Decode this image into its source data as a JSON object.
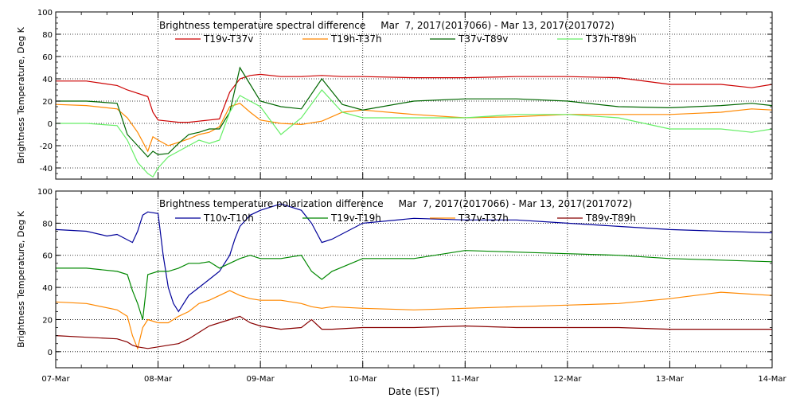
{
  "chart_data": [
    {
      "type": "line",
      "title": "Brightness temperature spectral difference     Mar  7, 2017(2017066) - Mar 13, 2017(2017072)",
      "xlabel": "",
      "ylabel": "Brightness Temperature, Deg K",
      "ylim": [
        -50,
        100
      ],
      "yticks": [
        -40,
        -20,
        0,
        20,
        40,
        60,
        80,
        100
      ],
      "xlim": [
        0,
        7
      ],
      "grid": true,
      "legend_position": "top",
      "series": [
        {
          "name": "T19v-T37v",
          "color": "#cc0000",
          "x": [
            0,
            0.3,
            0.6,
            0.7,
            0.8,
            0.9,
            0.95,
            1.0,
            1.1,
            1.2,
            1.3,
            1.4,
            1.5,
            1.6,
            1.7,
            1.8,
            1.9,
            2.0,
            2.2,
            2.4,
            2.6,
            2.8,
            3.0,
            3.5,
            4.0,
            4.5,
            5.0,
            5.5,
            6.0,
            6.5,
            6.8,
            7.0
          ],
          "y": [
            38,
            38,
            34,
            30,
            27,
            24,
            10,
            3,
            2,
            1,
            1,
            2,
            3,
            4,
            28,
            40,
            43,
            44,
            42,
            42,
            43,
            42,
            42,
            41,
            41,
            42,
            42,
            41,
            35,
            35,
            32,
            35
          ]
        },
        {
          "name": "T19h-T37h",
          "color": "#ff8800",
          "x": [
            0,
            0.3,
            0.6,
            0.7,
            0.8,
            0.9,
            0.95,
            1.0,
            1.1,
            1.2,
            1.3,
            1.4,
            1.5,
            1.6,
            1.7,
            1.8,
            1.9,
            2.0,
            2.2,
            2.4,
            2.6,
            2.8,
            3.0,
            3.5,
            4.0,
            4.5,
            5.0,
            5.5,
            6.0,
            6.5,
            6.8,
            7.0
          ],
          "y": [
            17,
            16,
            13,
            5,
            -8,
            -25,
            -12,
            -15,
            -20,
            -17,
            -14,
            -10,
            -8,
            -3,
            15,
            18,
            10,
            3,
            0,
            -1,
            2,
            10,
            12,
            8,
            5,
            6,
            8,
            8,
            8,
            10,
            13,
            12
          ]
        },
        {
          "name": "T37v-T89v",
          "color": "#006600",
          "x": [
            0,
            0.3,
            0.6,
            0.7,
            0.8,
            0.9,
            0.95,
            1.0,
            1.1,
            1.2,
            1.3,
            1.4,
            1.5,
            1.6,
            1.7,
            1.8,
            1.9,
            2.0,
            2.2,
            2.4,
            2.6,
            2.8,
            3.0,
            3.5,
            4.0,
            4.5,
            5.0,
            5.5,
            6.0,
            6.5,
            6.8,
            7.0
          ],
          "y": [
            20,
            20,
            18,
            -10,
            -20,
            -30,
            -25,
            -28,
            -27,
            -18,
            -10,
            -8,
            -5,
            -5,
            10,
            50,
            35,
            20,
            15,
            13,
            40,
            17,
            12,
            20,
            22,
            22,
            20,
            15,
            14,
            16,
            18,
            16
          ]
        },
        {
          "name": "T37h-T89h",
          "color": "#66ee66",
          "x": [
            0,
            0.3,
            0.6,
            0.7,
            0.8,
            0.9,
            0.95,
            1.0,
            1.1,
            1.2,
            1.3,
            1.4,
            1.5,
            1.6,
            1.7,
            1.8,
            1.9,
            2.0,
            2.2,
            2.4,
            2.6,
            2.8,
            3.0,
            3.5,
            4.0,
            4.5,
            5.0,
            5.5,
            6.0,
            6.5,
            6.8,
            7.0
          ],
          "y": [
            0,
            0,
            -2,
            -15,
            -35,
            -45,
            -48,
            -40,
            -30,
            -25,
            -20,
            -15,
            -18,
            -15,
            10,
            25,
            20,
            15,
            -10,
            5,
            30,
            10,
            5,
            5,
            5,
            8,
            8,
            5,
            -5,
            -5,
            -8,
            -5
          ]
        }
      ]
    },
    {
      "type": "line",
      "title": "Brightness temperature polarization difference     Mar  7, 2017(2017066) - Mar 13, 2017(2017072)",
      "xlabel": "Date (EST)",
      "ylabel": "Brightness Temperature, Deg K",
      "ylim": [
        -10,
        100
      ],
      "yticks": [
        0,
        20,
        40,
        60,
        80,
        100
      ],
      "xlim": [
        0,
        7
      ],
      "xticks": [
        "07-Mar",
        "08-Mar",
        "09-Mar",
        "10-Mar",
        "11-Mar",
        "12-Mar",
        "13-Mar",
        "14-Mar"
      ],
      "grid": true,
      "legend_position": "top",
      "series": [
        {
          "name": "T10v-T10h",
          "color": "#000099",
          "x": [
            0,
            0.3,
            0.5,
            0.6,
            0.75,
            0.8,
            0.85,
            0.9,
            1.0,
            1.05,
            1.1,
            1.15,
            1.2,
            1.3,
            1.4,
            1.5,
            1.6,
            1.7,
            1.75,
            1.8,
            1.9,
            2.0,
            2.2,
            2.4,
            2.5,
            2.6,
            2.7,
            3.0,
            3.5,
            4.0,
            4.5,
            5.0,
            5.5,
            6.0,
            6.5,
            7.0
          ],
          "y": [
            76,
            75,
            72,
            73,
            68,
            75,
            85,
            87,
            86,
            60,
            40,
            30,
            25,
            35,
            40,
            45,
            50,
            60,
            70,
            78,
            85,
            88,
            92,
            88,
            80,
            68,
            70,
            80,
            83,
            82,
            82,
            80,
            78,
            76,
            75,
            74
          ]
        },
        {
          "name": "T19v-T19h",
          "color": "#008800",
          "x": [
            0,
            0.3,
            0.6,
            0.7,
            0.75,
            0.8,
            0.85,
            0.9,
            1.0,
            1.1,
            1.2,
            1.3,
            1.4,
            1.5,
            1.6,
            1.7,
            1.8,
            1.9,
            2.0,
            2.2,
            2.4,
            2.5,
            2.6,
            2.7,
            3.0,
            3.5,
            4.0,
            4.5,
            5.0,
            5.5,
            6.0,
            6.5,
            7.0
          ],
          "y": [
            52,
            52,
            50,
            48,
            38,
            30,
            20,
            48,
            50,
            50,
            52,
            55,
            55,
            56,
            52,
            55,
            58,
            60,
            58,
            58,
            60,
            50,
            45,
            50,
            58,
            58,
            63,
            62,
            61,
            60,
            58,
            57,
            56
          ]
        },
        {
          "name": "T37v-T37h",
          "color": "#ff8800",
          "x": [
            0,
            0.3,
            0.6,
            0.7,
            0.75,
            0.8,
            0.85,
            0.9,
            1.0,
            1.1,
            1.2,
            1.3,
            1.4,
            1.5,
            1.6,
            1.7,
            1.8,
            1.9,
            2.0,
            2.2,
            2.4,
            2.5,
            2.6,
            2.7,
            3.0,
            3.5,
            4.0,
            4.5,
            5.0,
            5.5,
            6.0,
            6.5,
            7.0
          ],
          "y": [
            31,
            30,
            26,
            22,
            10,
            2,
            15,
            20,
            18,
            18,
            22,
            25,
            30,
            32,
            35,
            38,
            35,
            33,
            32,
            32,
            30,
            28,
            27,
            28,
            27,
            26,
            27,
            28,
            29,
            30,
            33,
            37,
            35
          ]
        },
        {
          "name": "T89v-T89h",
          "color": "#880000",
          "x": [
            0,
            0.3,
            0.6,
            0.7,
            0.75,
            0.8,
            0.9,
            1.0,
            1.1,
            1.2,
            1.3,
            1.4,
            1.5,
            1.6,
            1.7,
            1.8,
            1.9,
            2.0,
            2.2,
            2.4,
            2.5,
            2.6,
            2.7,
            3.0,
            3.5,
            4.0,
            4.5,
            5.0,
            5.5,
            6.0,
            6.5,
            7.0
          ],
          "y": [
            10,
            9,
            8,
            6,
            4,
            3,
            2,
            3,
            4,
            5,
            8,
            12,
            16,
            18,
            20,
            22,
            18,
            16,
            14,
            15,
            20,
            14,
            14,
            15,
            15,
            16,
            15,
            15,
            15,
            14,
            14,
            14
          ]
        }
      ]
    }
  ]
}
